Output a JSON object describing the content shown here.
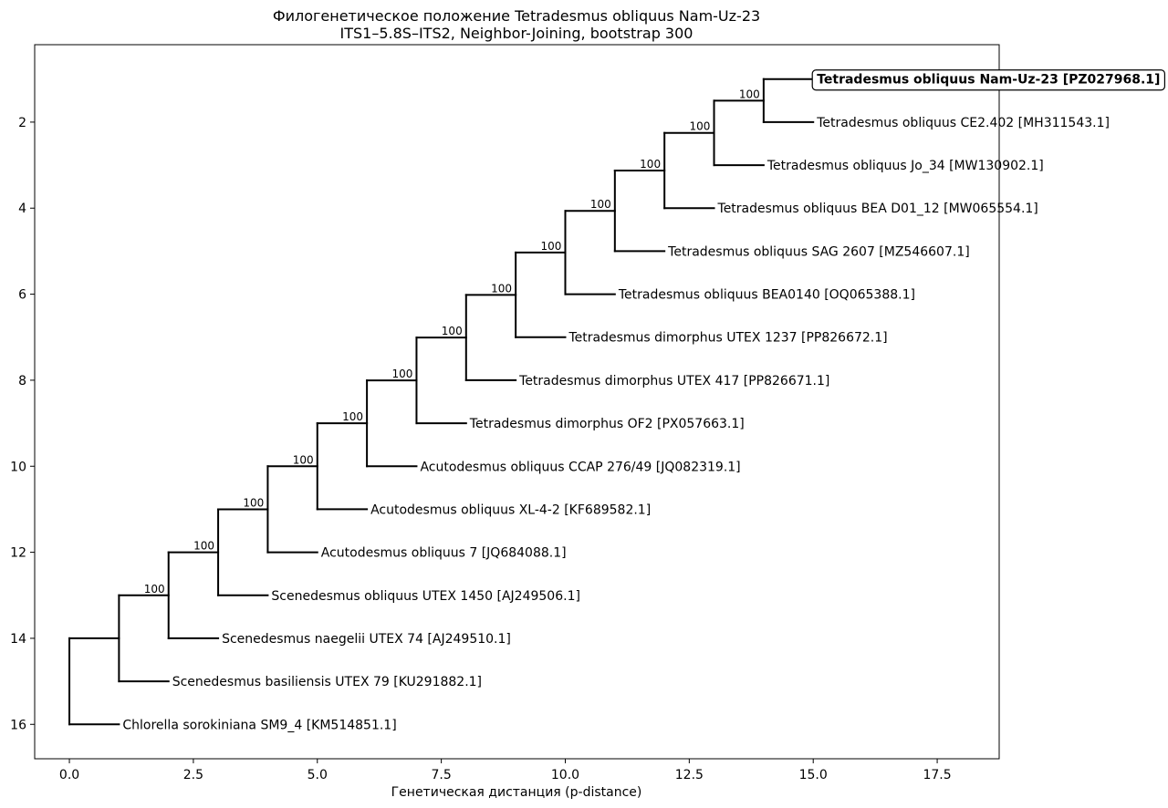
{
  "chart_data": {
    "type": "tree",
    "title": "Филогенетическое положение Tetradesmus obliquus Nam-Uz-23",
    "subtitle": "ITS1–5.8S–ITS2, Neighbor-Joining, bootstrap 300",
    "xlabel": "Генетическая дистанция (p-distance)",
    "ylabel": "",
    "xlim": [
      -0.7,
      18.75
    ],
    "ylim": [
      16.8,
      0.2
    ],
    "y_inverted": true,
    "grid": false,
    "x_ticks": [
      {
        "value": 0.0,
        "label": "0.0"
      },
      {
        "value": 2.5,
        "label": "2.5"
      },
      {
        "value": 5.0,
        "label": "5.0"
      },
      {
        "value": 7.5,
        "label": "7.5"
      },
      {
        "value": 10.0,
        "label": "10.0"
      },
      {
        "value": 12.5,
        "label": "12.5"
      },
      {
        "value": 15.0,
        "label": "15.0"
      },
      {
        "value": 17.5,
        "label": "17.5"
      }
    ],
    "y_ticks": [
      {
        "value": 2,
        "label": "2"
      },
      {
        "value": 4,
        "label": "4"
      },
      {
        "value": 6,
        "label": "6"
      },
      {
        "value": 8,
        "label": "8"
      },
      {
        "value": 10,
        "label": "10"
      },
      {
        "value": 12,
        "label": "12"
      },
      {
        "value": 14,
        "label": "14"
      },
      {
        "value": 16,
        "label": "16"
      }
    ],
    "line_color": "#000000",
    "leaves": [
      {
        "label": "Tetradesmus obliquus Nam-Uz-23 [PZ027968.1]",
        "x": 15,
        "y": 1,
        "highlight": true
      },
      {
        "label": "Tetradesmus obliquus CE2.402 [MH311543.1]",
        "x": 15,
        "y": 2
      },
      {
        "label": "Tetradesmus obliquus Jo_34 [MW130902.1]",
        "x": 14,
        "y": 3
      },
      {
        "label": "Tetradesmus obliquus BEA D01_12 [MW065554.1]",
        "x": 13,
        "y": 4
      },
      {
        "label": "Tetradesmus obliquus SAG 2607 [MZ546607.1]",
        "x": 12,
        "y": 5
      },
      {
        "label": "Tetradesmus obliquus BEA0140 [OQ065388.1]",
        "x": 11,
        "y": 6
      },
      {
        "label": "Tetradesmus dimorphus UTEX 1237 [PP826672.1]",
        "x": 10,
        "y": 7
      },
      {
        "label": "Tetradesmus dimorphus UTEX 417 [PP826671.1]",
        "x": 9,
        "y": 8
      },
      {
        "label": "Tetradesmus dimorphus OF2 [PX057663.1]",
        "x": 8,
        "y": 9
      },
      {
        "label": "Acutodesmus obliquus CCAP 276/49 [JQ082319.1]",
        "x": 7,
        "y": 10
      },
      {
        "label": "Acutodesmus obliquus XL-4-2 [KF689582.1]",
        "x": 6,
        "y": 11
      },
      {
        "label": "Acutodesmus obliquus 7 [JQ684088.1]",
        "x": 5,
        "y": 12
      },
      {
        "label": "Scenedesmus obliquus UTEX 1450 [AJ249506.1]",
        "x": 4,
        "y": 13
      },
      {
        "label": "Scenedesmus naegelii UTEX 74 [AJ249510.1]",
        "x": 3,
        "y": 14
      },
      {
        "label": "Scenedesmus basiliensis UTEX 79 [KU291882.1]",
        "x": 2,
        "y": 15
      },
      {
        "label": "Chlorella sorokiniana SM9_4 [KM514851.1]",
        "x": 1,
        "y": 16
      }
    ],
    "nodes": [
      {
        "x": 14,
        "y1": 1,
        "y2": 2,
        "child_y": 1.5,
        "parent_x": 13,
        "support": "100"
      },
      {
        "x": 13,
        "y1": 1.5,
        "y2": 3,
        "child_y": 2.25,
        "parent_x": 12,
        "support": "100"
      },
      {
        "x": 12,
        "y1": 2.25,
        "y2": 4,
        "child_y": 3.125,
        "parent_x": 11,
        "support": "100"
      },
      {
        "x": 11,
        "y1": 3.125,
        "y2": 5,
        "child_y": 4.0625,
        "parent_x": 10,
        "support": "100"
      },
      {
        "x": 10,
        "y1": 4.0625,
        "y2": 6,
        "child_y": 5.03125,
        "parent_x": 9,
        "support": "100"
      },
      {
        "x": 9,
        "y1": 5.03125,
        "y2": 7,
        "child_y": 6.015625,
        "parent_x": 8,
        "support": "100"
      },
      {
        "x": 8,
        "y1": 6.015625,
        "y2": 8,
        "child_y": 7.0078125,
        "parent_x": 7,
        "support": "100"
      },
      {
        "x": 7,
        "y1": 7.0078125,
        "y2": 9,
        "child_y": 8.00390625,
        "parent_x": 6,
        "support": "100"
      },
      {
        "x": 6,
        "y1": 8.00390625,
        "y2": 10,
        "child_y": 9.001953125,
        "parent_x": 5,
        "support": "100"
      },
      {
        "x": 5,
        "y1": 9.001953125,
        "y2": 11,
        "child_y": 10.0009765625,
        "parent_x": 4,
        "support": "100"
      },
      {
        "x": 4,
        "y1": 10.0009765625,
        "y2": 12,
        "child_y": 11.00048828125,
        "parent_x": 3,
        "support": "100"
      },
      {
        "x": 3,
        "y1": 11.00048828125,
        "y2": 13,
        "child_y": 12.000244140625,
        "parent_x": 2,
        "support": "100"
      },
      {
        "x": 2,
        "y1": 12.000244140625,
        "y2": 14,
        "child_y": 13.0001220703125,
        "parent_x": 1,
        "support": "100"
      },
      {
        "x": 1,
        "y1": 13.0001220703125,
        "y2": 15,
        "child_y": 14.00006103515625,
        "parent_x": 0,
        "support": ""
      },
      {
        "x": 0,
        "y1": 14.00006103515625,
        "y2": 16,
        "child_y": 15.000030517578125,
        "parent_x": null,
        "support": ""
      }
    ]
  }
}
